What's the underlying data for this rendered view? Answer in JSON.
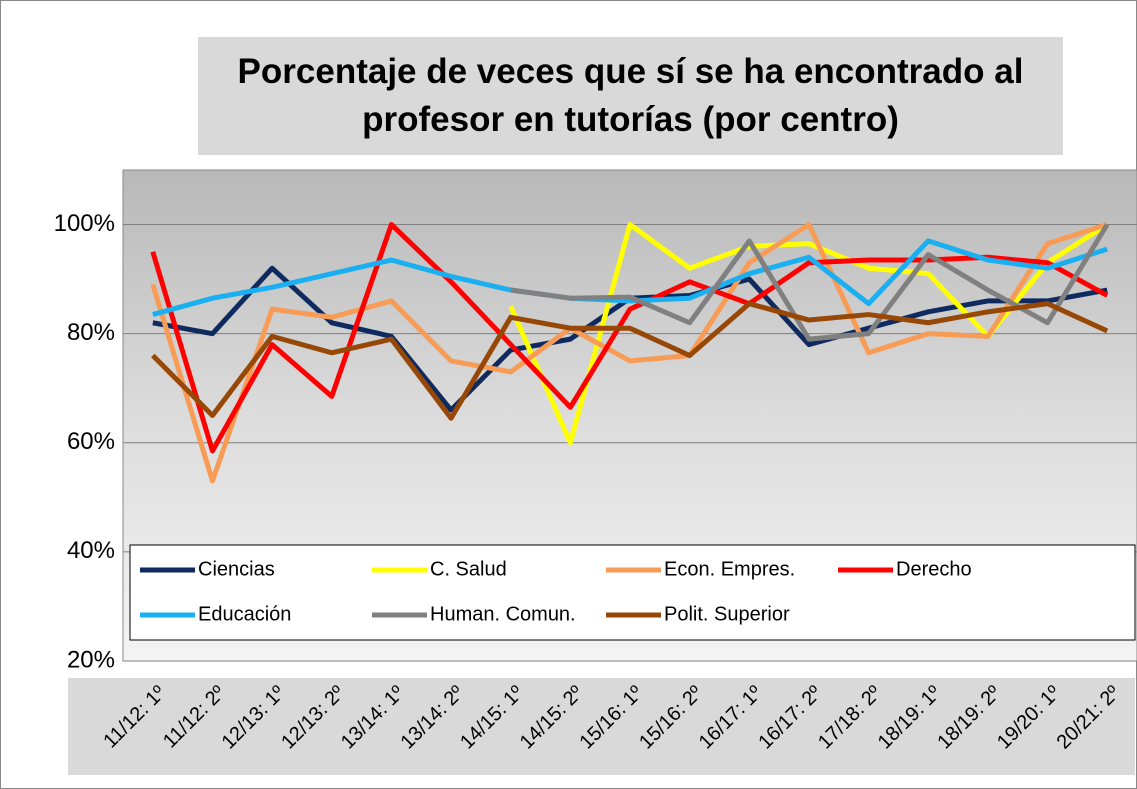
{
  "chart_data": {
    "type": "line",
    "title": "Porcentaje de veces que sí se ha encontrado al profesor en tutorías (por centro)",
    "categories": [
      "11/12: 1º",
      "11/12: 2º",
      "12/13: 1º",
      "12/13: 2º",
      "13/14: 1º",
      "13/14: 2º",
      "14/15: 1º",
      "14/15: 2º",
      "15/16: 1º",
      "15/16: 2º",
      "16/17: 1º",
      "16/17: 2º",
      "17/18: 2º",
      "18/19: 1º",
      "18/19: 2º",
      "19/20: 1º",
      "20/21: 2º"
    ],
    "series": [
      {
        "name": "Ciencias",
        "color": "#0f2a5e",
        "values": [
          82,
          80,
          92,
          82,
          79.5,
          66,
          77,
          79,
          86.5,
          87,
          90,
          78,
          81,
          84,
          86,
          86,
          88
        ]
      },
      {
        "name": "C. Salud",
        "color": "#ffff00",
        "values": [
          null,
          null,
          null,
          null,
          null,
          null,
          85,
          60,
          100,
          92,
          96,
          96.5,
          92,
          91,
          79.5,
          93,
          100
        ]
      },
      {
        "name": "Econ. Empres.",
        "color": "#f79b55",
        "values": [
          89,
          53,
          84.5,
          83,
          86,
          75,
          73,
          81,
          75,
          76,
          93,
          100,
          76.5,
          80,
          79.5,
          96.5,
          100
        ]
      },
      {
        "name": "Derecho",
        "color": "#ff0000",
        "values": [
          95,
          58.5,
          78,
          68.5,
          100,
          89.5,
          78,
          66.5,
          84.5,
          89.5,
          85.5,
          93,
          93.5,
          93.5,
          94,
          93,
          87
        ]
      },
      {
        "name": "Educación",
        "color": "#1aaff0",
        "values": [
          83.5,
          86.5,
          88.5,
          91,
          93.5,
          90.5,
          88,
          86.5,
          86,
          86.5,
          91,
          94,
          85.5,
          97,
          93.5,
          92,
          95.5
        ]
      },
      {
        "name": "Human. Comun.",
        "color": "#808080",
        "values": [
          null,
          null,
          null,
          null,
          null,
          null,
          88,
          86.5,
          86.7,
          82,
          97,
          79,
          80,
          94.5,
          88,
          82,
          100
        ]
      },
      {
        "name": "Polit. Superior",
        "color": "#974706",
        "values": [
          76,
          65,
          79.5,
          76.5,
          79,
          64.5,
          83,
          81,
          81,
          76,
          85.5,
          82.5,
          83.5,
          82,
          84,
          85.5,
          80.5
        ]
      }
    ],
    "ylim": [
      20,
      110
    ],
    "yticks": [
      {
        "value": 20,
        "label": "20%"
      },
      {
        "value": 40,
        "label": "40%"
      },
      {
        "value": 60,
        "label": "60%"
      },
      {
        "value": 80,
        "label": "80%"
      },
      {
        "value": 100,
        "label": "100%"
      }
    ],
    "grid": true
  }
}
